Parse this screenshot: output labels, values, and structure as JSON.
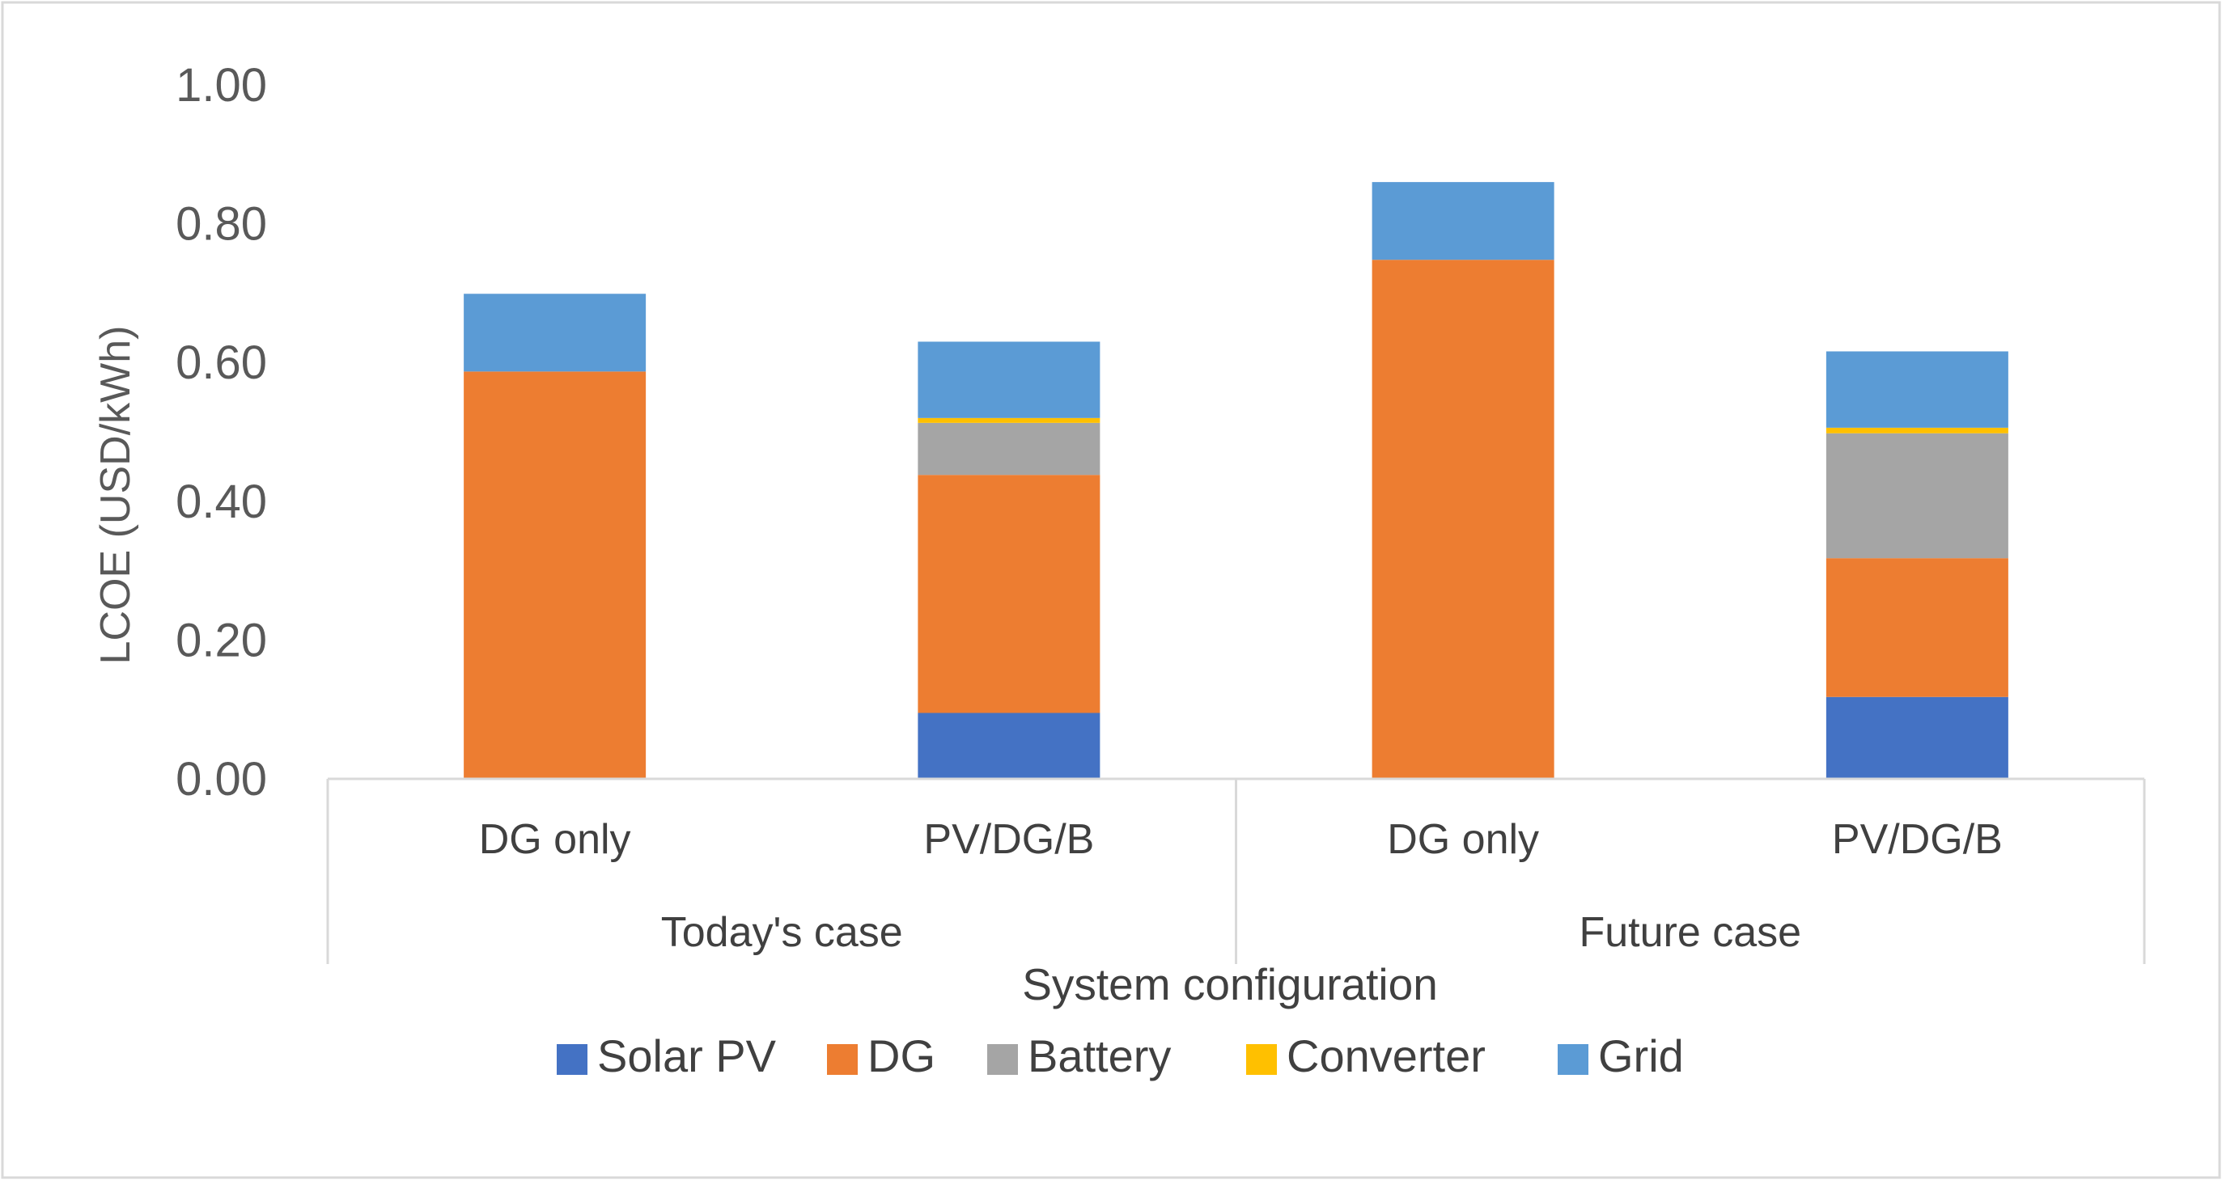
{
  "chart_data": {
    "type": "bar",
    "stacked": true,
    "title": "",
    "xlabel": "System configuration",
    "ylabel": "LCOE (USD/kWh)",
    "ylim": [
      0,
      1.0
    ],
    "yticks": [
      "0.00",
      "0.20",
      "0.40",
      "0.60",
      "0.80",
      "1.00"
    ],
    "grid": false,
    "legend_position": "bottom",
    "groups": [
      {
        "label": "Today's case",
        "categories": [
          "DG only",
          "PV/DG/B"
        ]
      },
      {
        "label": "Future case",
        "categories": [
          "DG only",
          "PV/DG/B"
        ]
      }
    ],
    "categories": [
      "DG only",
      "PV/DG/B",
      "DG only",
      "PV/DG/B"
    ],
    "series": [
      {
        "name": "Solar PV",
        "color": "#4472C4",
        "values": [
          0,
          0.095,
          0,
          0.118
        ]
      },
      {
        "name": "DG",
        "color": "#ED7D31",
        "values": [
          0.587,
          0.343,
          0.748,
          0.2
        ]
      },
      {
        "name": "Battery",
        "color": "#A5A5A5",
        "values": [
          0,
          0.075,
          0,
          0.18
        ]
      },
      {
        "name": "Converter",
        "color": "#FFC000",
        "values": [
          0,
          0.007,
          0,
          0.008
        ]
      },
      {
        "name": "Grid",
        "color": "#5B9BD5",
        "values": [
          0.112,
          0.11,
          0.112,
          0.11
        ]
      }
    ]
  }
}
